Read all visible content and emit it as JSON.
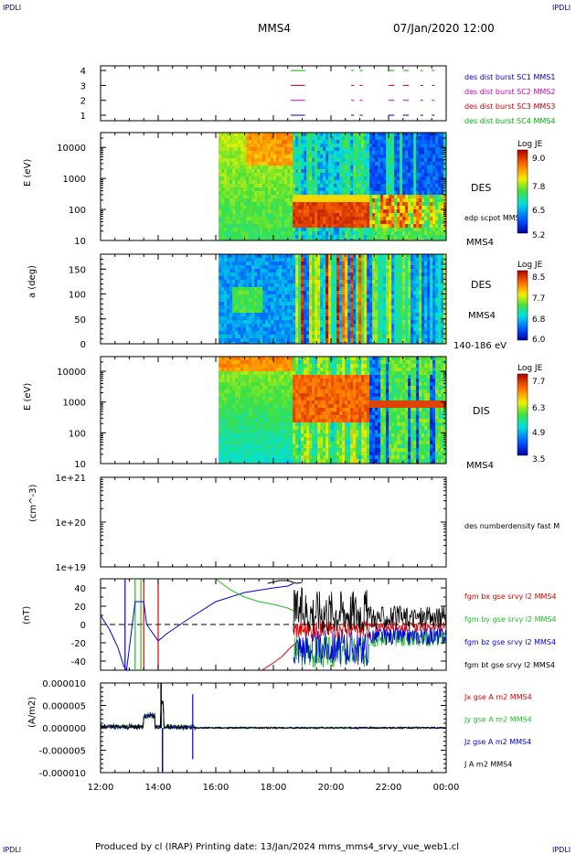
{
  "header": {
    "corner_tl": "IPDLI",
    "corner_tr": "IPDLI",
    "corner_bl": "IPDLI",
    "corner_br": "IPDLI",
    "spacecraft": "MMS4",
    "datetime": "07/Jan/2020 12:00",
    "footer": "Produced by cl (IRAP)   Printing date: 13/Jan/2024   mms_mms4_srvy_vue_web1.cl"
  },
  "colors": {
    "mms1": "#0000c8",
    "mms2": "#c800c8",
    "mms3": "#c80000",
    "mms4": "#00b400",
    "bx": "#e00000",
    "by": "#20c020",
    "bz": "#0000e0",
    "bt": "#000000"
  },
  "chart_data": [
    {
      "type": "scatter",
      "panel": "coverage",
      "yticks": [
        "1",
        "2",
        "3",
        "4"
      ],
      "legend": [
        "des dist burst SC1 MMS1",
        "des dist burst SC2 MMS2",
        "des dist burst SC3 MMS3",
        "des dist burst SC4 MMS4"
      ],
      "x_range_hours": [
        12,
        24
      ],
      "bursts": [
        {
          "start": 18.6,
          "end": 19.1
        },
        {
          "start": 20.7,
          "end": 20.8
        },
        {
          "start": 21.0,
          "end": 21.1
        },
        {
          "start": 22.0,
          "end": 22.2
        },
        {
          "start": 22.5,
          "end": 22.7
        },
        {
          "start": 23.1,
          "end": 23.2
        },
        {
          "start": 23.5,
          "end": 23.6
        }
      ]
    },
    {
      "type": "heatmap",
      "panel": "des_energy",
      "ylabel": "E (eV)",
      "yscale": "log",
      "ylim": [
        10,
        30000
      ],
      "yticks": [
        "10",
        "100",
        "1000",
        "10000"
      ],
      "label": "DES",
      "sublabel": "edp scpot MMS4",
      "spacecraft": "MMS4",
      "colorbar": {
        "title": "Log JE",
        "ticks": [
          "9.0",
          "7.8",
          "6.5",
          "5.2"
        ],
        "range": [
          5.2,
          9.0
        ]
      },
      "data_start_hour": 16.1
    },
    {
      "type": "heatmap",
      "panel": "des_pitch",
      "ylabel": "a (deg)",
      "ylim": [
        0,
        180
      ],
      "yticks": [
        "0",
        "50",
        "100",
        "150"
      ],
      "label": "DES",
      "sublabel": "MMS4",
      "energy_band": "140-186 eV",
      "colorbar": {
        "title": "Log JE",
        "ticks": [
          "8.5",
          "7.7",
          "6.8",
          "6.0"
        ],
        "range": [
          6.0,
          8.5
        ]
      },
      "data_start_hour": 16.1
    },
    {
      "type": "heatmap",
      "panel": "dis_energy",
      "ylabel": "E (eV)",
      "yscale": "log",
      "ylim": [
        10,
        30000
      ],
      "yticks": [
        "10",
        "100",
        "1000",
        "10000"
      ],
      "label": "DIS",
      "spacecraft": "MMS4",
      "colorbar": {
        "title": "Log JE",
        "ticks": [
          "7.7",
          "6.3",
          "4.9",
          "3.5"
        ],
        "range": [
          3.5,
          7.7
        ]
      },
      "data_start_hour": 16.1
    },
    {
      "type": "line",
      "panel": "density",
      "ylabel": "(cm^-3)",
      "yscale": "log",
      "ylim": [
        1e+19,
        1e+21
      ],
      "yticks": [
        "1e+19",
        "1e+20",
        "1e+21"
      ],
      "legend": [
        "des numberdensity fast M"
      ]
    },
    {
      "type": "line",
      "panel": "fgm",
      "ylabel": "(nT)",
      "ylim": [
        -50,
        50
      ],
      "yticks": [
        "-40",
        "-20",
        "0",
        "20",
        "40"
      ],
      "legend": [
        "fgm bx gse srvy l2 MMS4",
        "fgm by gse srvy l2 MMS4",
        "fgm bz gse srvy l2 MMS4",
        "fgm bt gse srvy l2 MMS4"
      ],
      "series": [
        {
          "name": "fgm bz gse srvy l2 MMS4",
          "x": [
            12.0,
            12.3,
            12.6,
            12.8,
            12.9,
            13.2,
            13.5,
            13.6,
            14.0,
            14.3,
            15.0,
            16.0,
            17.0,
            18.0,
            18.5,
            18.7
          ],
          "values": [
            10,
            -5,
            -25,
            -45,
            -50,
            25,
            25,
            0,
            -18,
            -10,
            5,
            25,
            35,
            40,
            42,
            45
          ]
        },
        {
          "name": "fgm by gse srvy l2 MMS4",
          "x": [
            16.0,
            16.5,
            17.0,
            17.5,
            18.0,
            18.5,
            18.7
          ],
          "values": [
            50,
            38,
            30,
            25,
            22,
            18,
            15
          ]
        },
        {
          "name": "fgm bx gse srvy l2 MMS4",
          "x": [
            17.6,
            18.0,
            18.3,
            18.6,
            18.8
          ],
          "values": [
            -50,
            -42,
            -35,
            -25,
            -20
          ]
        },
        {
          "name": "fgm bt gse srvy l2 MMS4",
          "x": [
            17.8,
            18.2,
            18.5,
            18.8,
            19.0
          ],
          "values": [
            45,
            48,
            48,
            45,
            46
          ]
        }
      ]
    },
    {
      "type": "line",
      "panel": "current",
      "ylabel": "(A/m2)",
      "ylim": [
        -1e-05,
        1e-05
      ],
      "yticks": [
        "-0.000010",
        "-0.000005",
        "0.000000",
        "0.000005",
        "0.000010"
      ],
      "legend": [
        "Jx gse A m2 MMS4",
        "Jy gse A m2 MMS4",
        "Jz gse A m2 MMS4",
        "J A m2 MMS4"
      ]
    }
  ],
  "x_axis": {
    "ticks": [
      "12:00",
      "14:00",
      "16:00",
      "18:00",
      "20:00",
      "22:00",
      "00:00"
    ],
    "range_hours": [
      12,
      24
    ]
  }
}
